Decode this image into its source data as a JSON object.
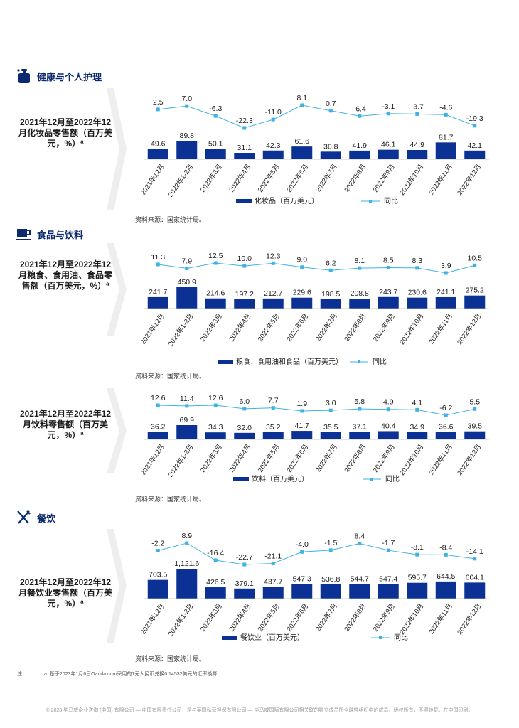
{
  "sections": {
    "s1": {
      "title": "健康与个人护理",
      "label": "2021年12月至2022年12月化妆品零售额（百万美元，%）ª",
      "source": "资料来源：国家统计局。"
    },
    "s2": {
      "title": "食品与饮料",
      "label": "2021年12月至2022年12月粮食、食用油、食品零售额（百万美元，%）ª",
      "source": "资料来源：国家统计局。"
    },
    "s3": {
      "label": "2021年12月至2022年12月饮料零售额（百万美元，%）ª",
      "source": "资料来源：国家统计局。"
    },
    "s4": {
      "title": "餐饮",
      "label": "2021年12月至2022年12月餐饮业零售额（百万美元，%）ª",
      "source": "资料来源：国家统计局。"
    }
  },
  "footnote": {
    "mark": "注：",
    "text": "a. 基于2023年1月6日Oanda.com采用的1元人民币兑换0.14532美元的汇率换算"
  },
  "copyright": "© 2023 毕马威企业咨询 (中国) 有限公司 — 中国有限责任公司，是与英国私营担保有限公司 — 毕马威国际有限公司相关联的独立成员所全球性组织中的成员。版权所有，不得转载。在中国印刷。",
  "colors": {
    "bar": "#0a3193",
    "line": "#3fb2e3",
    "title": "#0b2a6f",
    "chevron": "#eeeeee"
  },
  "chart_data": [
    {
      "type": "bar",
      "categories": [
        "2021年12月",
        "2022年1-2月",
        "2022年3月",
        "2022年4月",
        "2022年5月",
        "2022年6月",
        "2022年7月",
        "2022年8月",
        "2022年9月",
        "2022年10月",
        "2022年11月",
        "2022年12月"
      ],
      "series": [
        {
          "name": "化妆品（百万美元）",
          "type": "bar",
          "values": [
            49.6,
            89.8,
            50.1,
            31.1,
            42.3,
            61.6,
            36.8,
            41.9,
            46.1,
            44.9,
            81.7,
            42.1
          ]
        },
        {
          "name": "同比",
          "type": "line",
          "values": [
            2.5,
            7.0,
            -6.3,
            -22.3,
            -11.0,
            8.1,
            0.7,
            -6.4,
            -3.1,
            -3.7,
            -4.6,
            -19.3
          ]
        }
      ],
      "bar_labels": [
        "49.6",
        "89.8",
        "50.1",
        "31.1",
        "42.3",
        "61.6",
        "36.8",
        "41.9",
        "46.1",
        "44.9",
        "81.7",
        "42.1"
      ],
      "line_labels": [
        "2.5",
        "7.0",
        "-6.3",
        "-22.3",
        "-11.0",
        "8.1",
        "0.7",
        "-6.4",
        "-3.1",
        "-3.7",
        "-4.6",
        "-19.3"
      ]
    },
    {
      "type": "bar",
      "categories": [
        "2021年12月",
        "2022年1-2月",
        "2022年3月",
        "2022年4月",
        "2022年5月",
        "2022年6月",
        "2022年7月",
        "2022年8月",
        "2022年9月",
        "2022年10月",
        "2022年11月",
        "2022年12月"
      ],
      "series": [
        {
          "name": "粮食、食用油和食品（百万美元）",
          "type": "bar",
          "values": [
            241.7,
            450.9,
            214.6,
            197.2,
            212.7,
            229.6,
            198.5,
            208.8,
            243.7,
            230.6,
            241.1,
            275.2
          ]
        },
        {
          "name": "同比",
          "type": "line",
          "values": [
            11.3,
            7.9,
            12.5,
            10.0,
            12.3,
            9.0,
            6.2,
            8.1,
            8.5,
            8.3,
            3.9,
            10.5
          ]
        }
      ],
      "bar_labels": [
        "241.7",
        "450.9",
        "214.6",
        "197.2",
        "212.7",
        "229.6",
        "198.5",
        "208.8",
        "243.7",
        "230.6",
        "241.1",
        "275.2"
      ],
      "line_labels": [
        "11.3",
        "7.9",
        "12.5",
        "10.0",
        "12.3",
        "9.0",
        "6.2",
        "8.1",
        "8.5",
        "8.3",
        "3.9",
        "10.5"
      ]
    },
    {
      "type": "bar",
      "categories": [
        "2021年12月",
        "2022年1-2月",
        "2022年3月",
        "2022年4月",
        "2022年5月",
        "2022年6月",
        "2022年7月",
        "2022年8月",
        "2022年9月",
        "2022年10月",
        "2022年11月",
        "2022年12月"
      ],
      "series": [
        {
          "name": "饮料（百万美元）",
          "type": "bar",
          "values": [
            36.2,
            69.9,
            34.3,
            32.0,
            35.2,
            41.7,
            35.5,
            37.1,
            40.4,
            34.9,
            36.6,
            39.5
          ]
        },
        {
          "name": "同比",
          "type": "line",
          "values": [
            12.6,
            11.4,
            12.6,
            6.0,
            7.7,
            1.9,
            3.0,
            5.8,
            4.9,
            4.1,
            -6.2,
            5.5
          ]
        }
      ],
      "bar_labels": [
        "36.2",
        "69.9",
        "34.3",
        "32.0",
        "35.2",
        "41.7",
        "35.5",
        "37.1",
        "40.4",
        "34.9",
        "36.6",
        "39.5"
      ],
      "line_labels": [
        "12.6",
        "11.4",
        "12.6",
        "6.0",
        "7.7",
        "1.9",
        "3.0",
        "5.8",
        "4.9",
        "4.1",
        "-6.2",
        "5.5"
      ]
    },
    {
      "type": "bar",
      "categories": [
        "2021年12月",
        "2022年1-2月",
        "2022年3月",
        "2022年4月",
        "2022年5月",
        "2022年6月",
        "2022年7月",
        "2022年8月",
        "2022年9月",
        "2022年10月",
        "2022年11月",
        "2022年12月"
      ],
      "series": [
        {
          "name": "餐饮业（百万美元）",
          "type": "bar",
          "values": [
            703.5,
            1121.6,
            426.5,
            379.1,
            437.7,
            547.3,
            536.8,
            544.7,
            547.4,
            595.7,
            644.5,
            604.1
          ]
        },
        {
          "name": "同比",
          "type": "line",
          "values": [
            -2.2,
            8.9,
            -16.4,
            -22.7,
            -21.1,
            -4.0,
            -1.5,
            8.4,
            -1.7,
            -8.1,
            -8.4,
            -14.1
          ]
        }
      ],
      "bar_labels": [
        "703.5",
        "1,121.6",
        "426.5",
        "379.1",
        "437.7",
        "547.3",
        "536.8",
        "544.7",
        "547.4",
        "595.7",
        "644.5",
        "604.1"
      ],
      "line_labels": [
        "-2.2",
        "8.9",
        "-16.4",
        "-22.7",
        "-21.1",
        "-4.0",
        "-1.5",
        "8.4",
        "-1.7",
        "-8.1",
        "-8.4",
        "-14.1"
      ]
    }
  ]
}
